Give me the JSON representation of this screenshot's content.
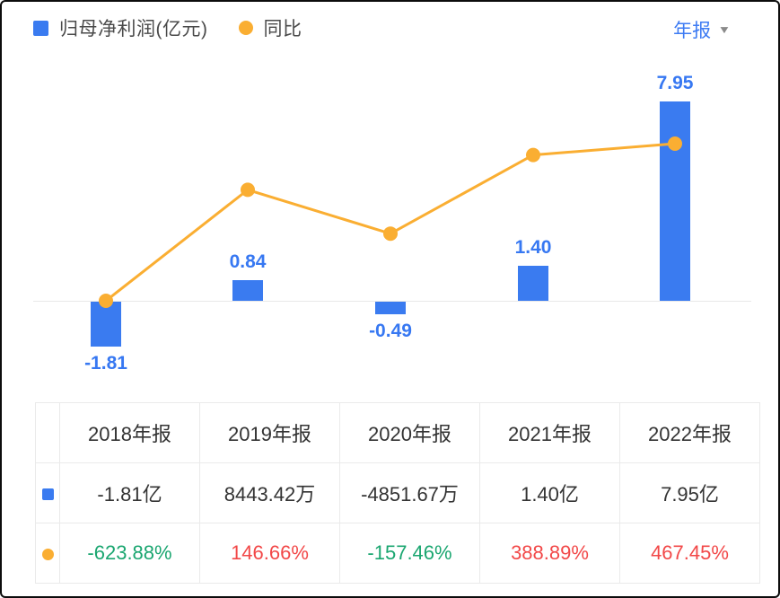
{
  "colors": {
    "bar_blue": "#3A7BF0",
    "line_orange": "#FAAE32",
    "label_blue": "#3778F2",
    "pct_up_red": "#F24848",
    "pct_down_green": "#1AA670",
    "axis_gray": "#e9e9e9"
  },
  "legend": {
    "items": [
      {
        "label": "归母净利润(亿元)",
        "marker": "square",
        "color": "#3A7BF0"
      },
      {
        "label": "同比",
        "marker": "circle",
        "color": "#FAAE32"
      }
    ]
  },
  "period_selector": {
    "label": "年报",
    "caret_icon": "▼"
  },
  "chart_data": {
    "type": "combo",
    "categories": [
      "2018年报",
      "2019年报",
      "2020年报",
      "2021年报",
      "2022年报"
    ],
    "series": [
      {
        "name": "归母净利润(亿元)",
        "type": "bar",
        "unit": "亿元",
        "values": [
          -1.81,
          0.84,
          -0.49,
          1.4,
          7.95
        ],
        "labels": [
          "-1.81",
          "0.84",
          "-0.49",
          "1.40",
          "7.95"
        ],
        "color": "#3A7BF0"
      },
      {
        "name": "同比",
        "type": "line",
        "unit": "%",
        "values": [
          -623.88,
          146.66,
          -157.46,
          388.89,
          467.45
        ],
        "labels": [
          "-623.88%",
          "146.66%",
          "-157.46%",
          "388.89%",
          "467.45%"
        ],
        "color": "#FAAE32"
      }
    ],
    "baseline": 0,
    "grid": false,
    "legend_position": "top-left",
    "x_axis_labels_shown": false
  },
  "table": {
    "headers": [
      "2018年报",
      "2019年报",
      "2020年报",
      "2021年报",
      "2022年报"
    ],
    "rows": [
      {
        "marker": "square",
        "marker_color": "#3A7BF0",
        "cells": [
          {
            "text": "-1.81亿",
            "color": "#333333"
          },
          {
            "text": "8443.42万",
            "color": "#333333"
          },
          {
            "text": "-4851.67万",
            "color": "#333333"
          },
          {
            "text": "1.40亿",
            "color": "#333333"
          },
          {
            "text": "7.95亿",
            "color": "#333333"
          }
        ]
      },
      {
        "marker": "circle",
        "marker_color": "#FAAE32",
        "cells": [
          {
            "text": "-623.88%",
            "color": "#1AA670"
          },
          {
            "text": "146.66%",
            "color": "#F24848"
          },
          {
            "text": "-157.46%",
            "color": "#1AA670"
          },
          {
            "text": "388.89%",
            "color": "#F24848"
          },
          {
            "text": "467.45%",
            "color": "#F24848"
          }
        ]
      }
    ]
  }
}
